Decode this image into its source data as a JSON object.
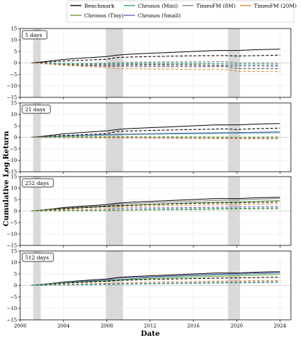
{
  "chart_data": {
    "type": "line",
    "xlabel": "Date",
    "ylabel": "Cumulative Log Return",
    "xlim": [
      2000,
      2025
    ],
    "ylim": [
      -15,
      15
    ],
    "xticks": [
      "2000",
      "2004",
      "2008",
      "2012",
      "2016",
      "2020",
      "2024"
    ],
    "yticks": [
      "-15",
      "-10",
      "-5",
      "0",
      "5",
      "10",
      "15"
    ],
    "grid": true,
    "legend_position": "top",
    "baseline": 0,
    "recession_bands": [
      [
        2001.2,
        2001.9
      ],
      [
        2007.9,
        2009.5
      ],
      [
        2019.2,
        2020.3
      ]
    ],
    "legend": [
      {
        "label": "Benchmark",
        "color": "#000000"
      },
      {
        "label": "Chronos (Tiny)",
        "color": "#6a9a2e"
      },
      {
        "label": "Chronos (Mini)",
        "color": "#2b9a9a"
      },
      {
        "label": "Chronos (Small)",
        "color": "#7a5ab0"
      },
      {
        "label": "TimesFM (8M)",
        "color": "#7f7f7f"
      },
      {
        "label": "TimesFM (20M)",
        "color": "#d88a3a"
      }
    ],
    "panels": [
      {
        "label": "5 days",
        "series": [
          {
            "name": "Benchmark",
            "color": "#000000",
            "dash": false,
            "x": [
              2001,
              2002,
              2004,
              2006,
              2008,
              2009,
              2010,
              2012,
              2014,
              2016,
              2018,
              2020,
              2022,
              2024
            ],
            "y": [
              0,
              0.4,
              1.5,
              2.2,
              2.8,
              3.4,
              3.8,
              4.2,
              4.6,
              5.0,
              5.4,
              5.4,
              5.8,
              6.0
            ]
          },
          {
            "name": "",
            "color": "#000000",
            "dash": true,
            "x": [
              2001,
              2004,
              2008,
              2009,
              2012,
              2016,
              2019,
              2020,
              2022,
              2024
            ],
            "y": [
              0,
              0.8,
              1.6,
              2.4,
              2.8,
              3.1,
              3.2,
              3.0,
              3.2,
              3.4
            ]
          },
          {
            "name": "",
            "color": "#7f7f7f",
            "dash": true,
            "x": [
              2001,
              2004,
              2008,
              2009,
              2012,
              2016,
              2019,
              2020,
              2024
            ],
            "y": [
              0,
              -0.3,
              -0.2,
              0.2,
              0.4,
              0.5,
              0.6,
              0.0,
              0.0
            ]
          },
          {
            "name": "",
            "color": "#2b9a9a",
            "dash": true,
            "x": [
              2001,
              2004,
              2008,
              2012,
              2016,
              2020,
              2024
            ],
            "y": [
              0,
              -0.3,
              -0.4,
              -0.2,
              -0.2,
              -0.5,
              -0.5
            ]
          },
          {
            "name": "",
            "color": "#6a9a2e",
            "dash": true,
            "x": [
              2001,
              2004,
              2008,
              2012,
              2016,
              2020,
              2024
            ],
            "y": [
              0,
              -0.6,
              -0.8,
              -0.6,
              -0.7,
              -1.2,
              -1.2
            ]
          },
          {
            "name": "",
            "color": "#7a5ab0",
            "dash": true,
            "x": [
              2001,
              2004,
              2008,
              2012,
              2016,
              2020,
              2024
            ],
            "y": [
              0,
              -0.8,
              -1.0,
              -0.9,
              -1.0,
              -1.3,
              -1.4
            ]
          },
          {
            "name": "",
            "color": "#555555",
            "dash": true,
            "x": [
              2001,
              2004,
              2008,
              2012,
              2016,
              2019,
              2020,
              2024
            ],
            "y": [
              0,
              -0.8,
              -1.4,
              -1.5,
              -1.6,
              -1.6,
              -2.4,
              -2.4
            ]
          },
          {
            "name": "",
            "color": "#d88a3a",
            "dash": true,
            "x": [
              2001,
              2004,
              2008,
              2009,
              2012,
              2016,
              2019,
              2020,
              2024
            ],
            "y": [
              0,
              -1.0,
              -2.0,
              -2.5,
              -2.6,
              -2.8,
              -2.8,
              -3.6,
              -3.7
            ]
          }
        ]
      },
      {
        "label": "21 days",
        "series": [
          {
            "name": "Benchmark",
            "color": "#000000",
            "dash": false,
            "x": [
              2001,
              2002,
              2004,
              2006,
              2008,
              2009,
              2010,
              2012,
              2014,
              2016,
              2018,
              2020,
              2022,
              2024
            ],
            "y": [
              0,
              0.4,
              1.5,
              2.2,
              2.8,
              3.4,
              3.8,
              4.2,
              4.6,
              5.0,
              5.4,
              5.4,
              5.8,
              6.0
            ]
          },
          {
            "name": "",
            "color": "#000000",
            "dash": true,
            "x": [
              2001,
              2004,
              2008,
              2009,
              2012,
              2016,
              2019,
              2020,
              2022,
              2024
            ],
            "y": [
              0,
              0.8,
              1.6,
              2.6,
              3.0,
              3.4,
              3.7,
              3.4,
              3.8,
              4.0
            ]
          },
          {
            "name": "",
            "color": "#7a5ab0",
            "dash": false,
            "x": [
              2001,
              2004,
              2008,
              2012,
              2016,
              2020,
              2024
            ],
            "y": [
              0,
              0.5,
              1.2,
              1.6,
              1.9,
              2.1,
              2.4
            ]
          },
          {
            "name": "",
            "color": "#2b9a9a",
            "dash": false,
            "x": [
              2001,
              2004,
              2008,
              2012,
              2016,
              2020,
              2024
            ],
            "y": [
              0,
              0.4,
              1.0,
              1.4,
              1.6,
              1.8,
              2.0
            ]
          },
          {
            "name": "",
            "color": "#6a9a2e",
            "dash": true,
            "x": [
              2001,
              2004,
              2008,
              2012,
              2016,
              2020,
              2024
            ],
            "y": [
              0,
              0.2,
              0.3,
              0.2,
              0.2,
              0.1,
              0.2
            ]
          },
          {
            "name": "",
            "color": "#7f7f7f",
            "dash": true,
            "x": [
              2001,
              2004,
              2008,
              2012,
              2016,
              2020,
              2024
            ],
            "y": [
              0,
              -0.1,
              0.0,
              -0.1,
              -0.2,
              -0.3,
              -0.3
            ]
          },
          {
            "name": "",
            "color": "#d88a3a",
            "dash": true,
            "x": [
              2001,
              2004,
              2008,
              2012,
              2016,
              2020,
              2024
            ],
            "y": [
              0,
              -0.2,
              -0.3,
              -0.4,
              -0.5,
              -0.6,
              -0.7
            ]
          }
        ]
      },
      {
        "label": "252 days",
        "series": [
          {
            "name": "Benchmark",
            "color": "#000000",
            "dash": false,
            "x": [
              2001,
              2002,
              2004,
              2006,
              2008,
              2009,
              2010,
              2012,
              2014,
              2016,
              2018,
              2020,
              2022,
              2024
            ],
            "y": [
              0,
              0.4,
              1.5,
              2.2,
              2.8,
              3.4,
              3.8,
              4.2,
              4.6,
              5.0,
              5.4,
              5.4,
              5.8,
              6.0
            ]
          },
          {
            "name": "",
            "color": "#7f7f7f",
            "dash": false,
            "x": [
              2001,
              2004,
              2008,
              2009,
              2012,
              2016,
              2020,
              2022,
              2024
            ],
            "y": [
              0,
              1.3,
              2.3,
              3.0,
              3.6,
              4.3,
              4.8,
              5.2,
              5.5
            ]
          },
          {
            "name": "",
            "color": "#6a9a2e",
            "dash": false,
            "x": [
              2001,
              2004,
              2008,
              2012,
              2016,
              2020,
              2024
            ],
            "y": [
              0,
              1.1,
              1.9,
              2.9,
              3.6,
              4.0,
              4.6
            ]
          },
          {
            "name": "",
            "color": "#000000",
            "dash": true,
            "x": [
              2001,
              2004,
              2008,
              2009,
              2012,
              2016,
              2020,
              2024
            ],
            "y": [
              0,
              1.0,
              2.0,
              2.4,
              2.8,
              3.4,
              3.6,
              4.0
            ]
          },
          {
            "name": "",
            "color": "#d88a3a",
            "dash": true,
            "x": [
              2001,
              2004,
              2008,
              2009,
              2012,
              2016,
              2020,
              2024
            ],
            "y": [
              0,
              0.6,
              1.0,
              1.8,
              2.2,
              2.6,
              2.8,
              3.2
            ]
          },
          {
            "name": "",
            "color": "#7a5ab0",
            "dash": true,
            "x": [
              2001,
              2004,
              2008,
              2009,
              2012,
              2016,
              2020,
              2024
            ],
            "y": [
              0,
              0.3,
              0.4,
              1.2,
              1.4,
              1.5,
              1.8,
              2.0
            ]
          },
          {
            "name": "",
            "color": "#2b9a9a",
            "dash": true,
            "x": [
              2001,
              2004,
              2008,
              2012,
              2016,
              2020,
              2024
            ],
            "y": [
              0,
              0.2,
              0.3,
              0.8,
              1.0,
              1.2,
              1.4
            ]
          },
          {
            "name": "",
            "color": "#6a9a2e",
            "dash": true,
            "x": [
              2001,
              2004,
              2008,
              2012,
              2016,
              2020,
              2024
            ],
            "y": [
              0,
              0.1,
              0.2,
              0.5,
              0.6,
              0.9,
              1.0
            ]
          }
        ]
      },
      {
        "label": "512 days",
        "series": [
          {
            "name": "Benchmark",
            "color": "#000000",
            "dash": false,
            "x": [
              2001,
              2002,
              2004,
              2006,
              2008,
              2009,
              2010,
              2012,
              2014,
              2016,
              2018,
              2020,
              2022,
              2024
            ],
            "y": [
              0,
              0.4,
              1.5,
              2.2,
              2.8,
              3.4,
              3.8,
              4.2,
              4.6,
              5.0,
              5.4,
              5.4,
              5.8,
              6.0
            ]
          },
          {
            "name": "",
            "color": "#7a5ab0",
            "dash": false,
            "x": [
              2001,
              2004,
              2008,
              2009,
              2012,
              2016,
              2020,
              2024
            ],
            "y": [
              0,
              1.4,
              2.4,
              3.2,
              3.8,
              4.6,
              5.2,
              5.8
            ]
          },
          {
            "name": "",
            "color": "#2b9a9a",
            "dash": false,
            "x": [
              2001,
              2004,
              2008,
              2012,
              2016,
              2020,
              2024
            ],
            "y": [
              0,
              1.3,
              2.2,
              3.5,
              4.2,
              4.8,
              5.4
            ]
          },
          {
            "name": "",
            "color": "#6a9a2e",
            "dash": false,
            "x": [
              2001,
              2004,
              2008,
              2012,
              2016,
              2020,
              2024
            ],
            "y": [
              0,
              1.1,
              2.0,
              3.0,
              3.6,
              4.2,
              4.8
            ]
          },
          {
            "name": "",
            "color": "#000000",
            "dash": true,
            "x": [
              2001,
              2004,
              2008,
              2009,
              2012,
              2016,
              2020,
              2024
            ],
            "y": [
              0,
              1.0,
              1.8,
              2.2,
              2.6,
              3.0,
              3.3,
              3.6
            ]
          },
          {
            "name": "",
            "color": "#d88a3a",
            "dash": true,
            "x": [
              2001,
              2004,
              2008,
              2012,
              2016,
              2020,
              2024
            ],
            "y": [
              0,
              0.5,
              0.9,
              1.4,
              1.7,
              2.0,
              2.2
            ]
          },
          {
            "name": "",
            "color": "#7f7f7f",
            "dash": true,
            "x": [
              2001,
              2004,
              2008,
              2012,
              2016,
              2020,
              2024
            ],
            "y": [
              0,
              0.3,
              0.6,
              0.9,
              1.2,
              1.5,
              1.7
            ]
          },
          {
            "name": "",
            "color": "#2b9a9a",
            "dash": true,
            "x": [
              2001,
              2004,
              2008,
              2012,
              2016,
              2020,
              2024
            ],
            "y": [
              0,
              0.2,
              0.4,
              0.7,
              0.9,
              1.1,
              1.3
            ]
          }
        ]
      }
    ]
  }
}
